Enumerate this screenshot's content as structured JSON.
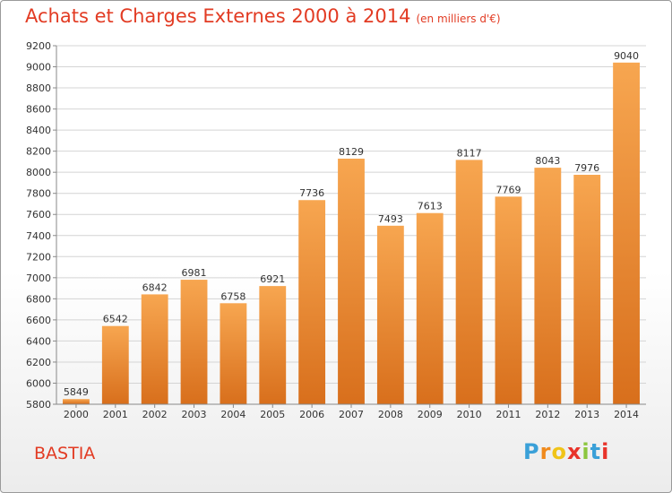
{
  "title": "Achats et Charges Externes 2000 à 2014",
  "subtitle": "(en milliers d'€)",
  "city": "BASTIA",
  "logo": {
    "letters": [
      "P",
      "r",
      "o",
      "x",
      "i",
      "t",
      "i"
    ],
    "colors": [
      "#3aa0d8",
      "#f08a1c",
      "#f0c419",
      "#e8332a",
      "#8cc63e",
      "#3aa0d8",
      "#e8332a"
    ]
  },
  "colors": {
    "bar_light": "#f7a650",
    "bar_dark": "#d86f1c",
    "title": "#e23b23"
  },
  "chart_data": {
    "type": "bar",
    "categories": [
      "2000",
      "2001",
      "2002",
      "2003",
      "2004",
      "2005",
      "2006",
      "2007",
      "2008",
      "2009",
      "2010",
      "2011",
      "2012",
      "2013",
      "2014"
    ],
    "values": [
      5849,
      6542,
      6842,
      6981,
      6758,
      6921,
      7736,
      8129,
      7493,
      7613,
      8117,
      7769,
      8043,
      7976,
      9040
    ],
    "value_labels": [
      "5849",
      "6542",
      "6842",
      "6981",
      "6758",
      "6921",
      "7736",
      "8129",
      "7493",
      "7613",
      "8117",
      "7769",
      "8043",
      "7976",
      "9040"
    ],
    "y_ticks": [
      5800,
      6000,
      6200,
      6400,
      6600,
      6800,
      7000,
      7200,
      7400,
      7600,
      7800,
      8000,
      8200,
      8400,
      8600,
      8800,
      9000,
      9200
    ],
    "y_tick_labels": [
      "5800",
      "6000",
      "6200",
      "6400",
      "6600",
      "6800",
      "7000",
      "7200",
      "7400",
      "7600",
      "7800",
      "8000",
      "8200",
      "8400",
      "8600",
      "8800",
      "9000",
      "9200"
    ],
    "ylim": [
      5800,
      9200
    ],
    "grid": true
  }
}
